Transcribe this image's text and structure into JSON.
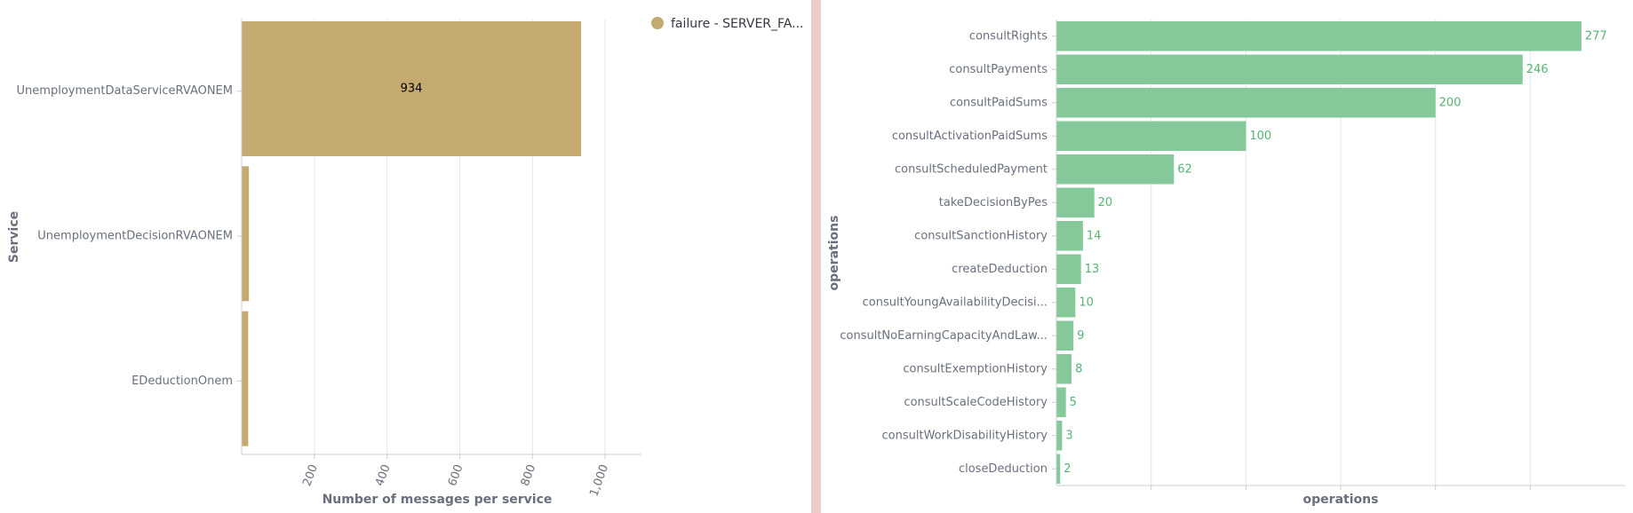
{
  "chart_data": [
    {
      "type": "bar",
      "orientation": "horizontal",
      "categories": [
        "UnemploymentDataServiceRVAONEM",
        "UnemploymentDecisionRVAONEM",
        "EDeductionOnem"
      ],
      "series": [
        {
          "name": "failure - SERVER_FA...",
          "values": [
            934,
            20,
            18
          ],
          "color": "#c4a970"
        }
      ],
      "value_labels": [
        "934",
        "",
        ""
      ],
      "xlabel": "Number of messages per service",
      "ylabel": "Service",
      "xlim": [
        0,
        1100
      ],
      "xticks": [
        200,
        400,
        600,
        800,
        1000
      ],
      "xtick_labels": [
        "200",
        "400",
        "600",
        "800",
        "1,000"
      ],
      "grid": true,
      "legend": "right"
    },
    {
      "type": "bar",
      "orientation": "horizontal",
      "categories": [
        "consultRights",
        "consultPayments",
        "consultPaidSums",
        "consultActivationPaidSums",
        "consultScheduledPayment",
        "takeDecisionByPes",
        "consultSanctionHistory",
        "createDeduction",
        "consultYoungAvailabilityDecisi...",
        "consultNoEarningCapacityAndLaw...",
        "consultExemptionHistory",
        "consultScaleCodeHistory",
        "consultWorkDisabilityHistory",
        "closeDeduction"
      ],
      "values": [
        277,
        246,
        200,
        100,
        62,
        20,
        14,
        13,
        10,
        9,
        8,
        5,
        3,
        2
      ],
      "value_labels": [
        "277",
        "246",
        "200",
        "100",
        "62",
        "20",
        "14",
        "13",
        "10",
        "9",
        "8",
        "5",
        "3",
        "2"
      ],
      "color": "#85c89a",
      "label_color": "#56b374",
      "xlabel": "operations",
      "ylabel": "operations",
      "xlim": [
        0,
        300
      ],
      "grid": true,
      "legend": "none"
    }
  ]
}
